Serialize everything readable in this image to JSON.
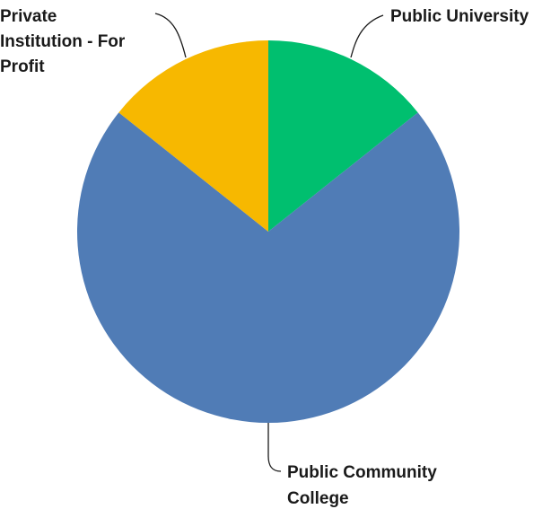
{
  "chart_data": {
    "type": "pie",
    "title": "",
    "slices": [
      {
        "label": "Public University",
        "value": 14.3,
        "color": "#00bf6f"
      },
      {
        "label": "Public Community College",
        "value": 71.4,
        "color": "#507cb6"
      },
      {
        "label": "Private Institution - For Profit",
        "value": 14.3,
        "color": "#f7b800"
      }
    ],
    "start_angle": "12 o'clock",
    "direction": "clockwise",
    "legend": "none",
    "labels": "outside with leader lines"
  }
}
